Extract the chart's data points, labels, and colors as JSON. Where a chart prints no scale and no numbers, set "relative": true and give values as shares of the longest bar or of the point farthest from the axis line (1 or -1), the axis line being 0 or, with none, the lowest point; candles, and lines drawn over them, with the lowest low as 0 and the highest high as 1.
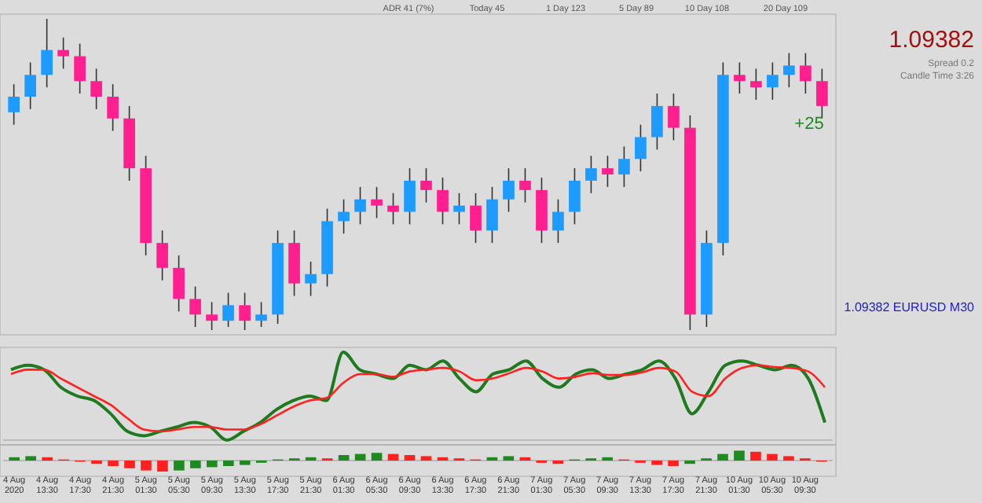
{
  "chart_data": [
    {
      "type": "candlestick",
      "relative": true,
      "tick_labels": false,
      "categories": [
        null,
        null,
        null,
        null,
        null,
        null,
        null,
        null,
        null,
        null,
        null,
        null,
        null,
        null,
        null,
        null,
        null,
        null,
        null,
        null,
        null,
        null,
        null,
        null,
        null,
        null,
        null,
        null,
        null,
        null,
        null,
        null,
        null,
        null,
        null,
        null,
        null,
        null,
        null,
        null,
        null,
        null,
        null,
        null,
        null,
        null,
        null,
        null,
        null,
        null
      ],
      "ohlc": [
        [
          0.7,
          0.79,
          0.66,
          0.75
        ],
        [
          0.75,
          0.86,
          0.71,
          0.82
        ],
        [
          0.82,
          1,
          0.78,
          0.9
        ],
        [
          0.9,
          0.94,
          0.84,
          0.88
        ],
        [
          0.88,
          0.92,
          0.76,
          0.8
        ],
        [
          0.8,
          0.84,
          0.71,
          0.75
        ],
        [
          0.75,
          0.79,
          0.64,
          0.68
        ],
        [
          0.68,
          0.72,
          0.48,
          0.52
        ],
        [
          0.52,
          0.56,
          0.24,
          0.28
        ],
        [
          0.28,
          0.32,
          0.16,
          0.2
        ],
        [
          0.2,
          0.24,
          0.06,
          0.1
        ],
        [
          0.1,
          0.14,
          0.01,
          0.05
        ],
        [
          0.05,
          0.09,
          0,
          0.03
        ],
        [
          0.03,
          0.12,
          0.01,
          0.08
        ],
        [
          0.08,
          0.12,
          0,
          0.03
        ],
        [
          0.03,
          0.09,
          0.01,
          0.05
        ],
        [
          0.05,
          0.32,
          0.02,
          0.28
        ],
        [
          0.28,
          0.32,
          0.11,
          0.15
        ],
        [
          0.15,
          0.22,
          0.11,
          0.18
        ],
        [
          0.18,
          0.39,
          0.14,
          0.35
        ],
        [
          0.35,
          0.42,
          0.31,
          0.38
        ],
        [
          0.38,
          0.46,
          0.34,
          0.42
        ],
        [
          0.42,
          0.46,
          0.36,
          0.4
        ],
        [
          0.4,
          0.44,
          0.34,
          0.38
        ],
        [
          0.38,
          0.52,
          0.34,
          0.48
        ],
        [
          0.48,
          0.52,
          0.41,
          0.45
        ],
        [
          0.45,
          0.49,
          0.34,
          0.38
        ],
        [
          0.38,
          0.44,
          0.34,
          0.4
        ],
        [
          0.4,
          0.44,
          0.28,
          0.32
        ],
        [
          0.32,
          0.46,
          0.28,
          0.42
        ],
        [
          0.42,
          0.52,
          0.38,
          0.48
        ],
        [
          0.48,
          0.52,
          0.41,
          0.45
        ],
        [
          0.45,
          0.49,
          0.28,
          0.32
        ],
        [
          0.32,
          0.42,
          0.28,
          0.38
        ],
        [
          0.38,
          0.52,
          0.34,
          0.48
        ],
        [
          0.48,
          0.56,
          0.44,
          0.52
        ],
        [
          0.52,
          0.56,
          0.46,
          0.5
        ],
        [
          0.5,
          0.59,
          0.46,
          0.55
        ],
        [
          0.55,
          0.66,
          0.51,
          0.62
        ],
        [
          0.62,
          0.76,
          0.58,
          0.72
        ],
        [
          0.72,
          0.76,
          0.61,
          0.65
        ],
        [
          0.65,
          0.69,
          0,
          0.05
        ],
        [
          0.05,
          0.32,
          0.01,
          0.28
        ],
        [
          0.28,
          0.86,
          0.24,
          0.82
        ],
        [
          0.82,
          0.86,
          0.76,
          0.8
        ],
        [
          0.8,
          0.84,
          0.74,
          0.78
        ],
        [
          0.78,
          0.86,
          0.74,
          0.82
        ],
        [
          0.82,
          0.89,
          0.78,
          0.85
        ],
        [
          0.85,
          0.89,
          0.76,
          0.8
        ],
        [
          0.8,
          0.84,
          0.68,
          0.72
        ]
      ],
      "colors": [
        "#1e9bff",
        "#1e9bff",
        "#1e9bff",
        "#ff1f8e",
        "#ff1f8e",
        "#ff1f8e",
        "#ff1f8e",
        "#ff1f8e",
        "#ff1f8e",
        "#ff1f8e",
        "#ff1f8e",
        "#ff1f8e",
        "#ff1f8e",
        "#1e9bff",
        "#ff1f8e",
        "#1e9bff",
        "#1e9bff",
        "#ff1f8e",
        "#1e9bff",
        "#1e9bff",
        "#1e9bff",
        "#1e9bff",
        "#ff1f8e",
        "#ff1f8e",
        "#1e9bff",
        "#ff1f8e",
        "#ff1f8e",
        "#1e9bff",
        "#ff1f8e",
        "#1e9bff",
        "#1e9bff",
        "#ff1f8e",
        "#ff1f8e",
        "#1e9bff",
        "#1e9bff",
        "#1e9bff",
        "#ff1f8e",
        "#1e9bff",
        "#1e9bff",
        "#1e9bff",
        "#ff1f8e",
        "#ff1f8e",
        "#1e9bff",
        "#1e9bff",
        "#ff1f8e",
        "#ff1f8e",
        "#1e9bff",
        "#1e9bff",
        "#ff1f8e",
        "#ff1f8e"
      ],
      "annotations": [
        "ADR 41 (7%)",
        "Today 45",
        "1 Day 123",
        "5 Day 89",
        "10 Day 108",
        "20 Day 109",
        "+25",
        "1.09382",
        "Spread 0.2",
        "Candle Time 3:26",
        "1.09382 EURUSD M30"
      ]
    },
    {
      "type": "line",
      "relative": true,
      "tick_labels": false,
      "categories": [
        null,
        null,
        null,
        null,
        null,
        null,
        null,
        null,
        null,
        null,
        null,
        null,
        null,
        null,
        null,
        null,
        null,
        null,
        null,
        null,
        null,
        null,
        null,
        null,
        null,
        null,
        null,
        null,
        null,
        null,
        null,
        null,
        null,
        null,
        null,
        null,
        null,
        null,
        null,
        null,
        null,
        null,
        null,
        null,
        null,
        null,
        null,
        null,
        null,
        null
      ],
      "series": [
        {
          "color": "#1f7a1f",
          "values": [
            0.8,
            0.85,
            0.8,
            0.6,
            0.5,
            0.45,
            0.3,
            0.1,
            0.05,
            0.1,
            0.15,
            0.2,
            0.15,
            0,
            0.1,
            0.2,
            0.35,
            0.45,
            0.5,
            0.45,
            1,
            0.8,
            0.75,
            0.7,
            0.85,
            0.8,
            0.9,
            0.7,
            0.55,
            0.75,
            0.8,
            0.9,
            0.7,
            0.6,
            0.75,
            0.8,
            0.7,
            0.75,
            0.8,
            0.9,
            0.7,
            0.3,
            0.55,
            0.85,
            0.9,
            0.85,
            0.8,
            0.85,
            0.7,
            0.2
          ]
        },
        {
          "color": "#ff2020",
          "values": [
            0.75,
            0.8,
            0.8,
            0.7,
            0.6,
            0.5,
            0.4,
            0.25,
            0.12,
            0.1,
            0.12,
            0.15,
            0.15,
            0.12,
            0.12,
            0.18,
            0.28,
            0.38,
            0.45,
            0.48,
            0.65,
            0.75,
            0.75,
            0.72,
            0.78,
            0.8,
            0.82,
            0.78,
            0.68,
            0.7,
            0.76,
            0.82,
            0.78,
            0.7,
            0.72,
            0.76,
            0.74,
            0.74,
            0.77,
            0.82,
            0.78,
            0.55,
            0.5,
            0.7,
            0.82,
            0.85,
            0.83,
            0.82,
            0.78,
            0.6
          ]
        }
      ]
    },
    {
      "type": "bar",
      "relative": true,
      "tick_labels": "x",
      "categories": [
        "4 Aug 2020",
        null,
        "4 Aug 13:30",
        null,
        "4 Aug 17:30",
        null,
        "4 Aug 21:30",
        null,
        "5 Aug 01:30",
        null,
        "5 Aug 05:30",
        null,
        "5 Aug 09:30",
        null,
        "5 Aug 13:30",
        null,
        "5 Aug 17:30",
        null,
        "5 Aug 21:30",
        null,
        "6 Aug 01:30",
        null,
        "6 Aug 05:30",
        null,
        "6 Aug 09:30",
        null,
        "6 Aug 13:30",
        null,
        "6 Aug 17:30",
        null,
        "6 Aug 21:30",
        null,
        "7 Aug 01:30",
        null,
        "7 Aug 05:30",
        null,
        "7 Aug 09:30",
        null,
        "7 Aug 13:30",
        null,
        "7 Aug 17:30",
        null,
        "7 Aug 21:30",
        null,
        "10 Aug 01:30",
        null,
        "10 Aug 05:30",
        null,
        "10 Aug 09:30",
        null
      ],
      "values": [
        0.3,
        0.4,
        0.3,
        0.1,
        -0.1,
        -0.3,
        -0.5,
        -0.7,
        -0.9,
        -1,
        -0.9,
        -0.7,
        -0.6,
        -0.5,
        -0.4,
        -0.2,
        0.1,
        0.2,
        0.3,
        0.2,
        0.5,
        0.6,
        0.7,
        0.6,
        0.5,
        0.4,
        0.3,
        0.2,
        0.1,
        0.3,
        0.4,
        0.3,
        -0.2,
        -0.3,
        0.1,
        0.2,
        0.3,
        0.1,
        -0.2,
        -0.4,
        -0.5,
        -0.3,
        0.2,
        0.6,
        0.9,
        0.8,
        0.6,
        0.4,
        0.2,
        -0.1
      ],
      "colors": [
        "#1f8a1f",
        "#1f8a1f",
        "#ff2020",
        "#ff2020",
        "#ff2020",
        "#ff2020",
        "#ff2020",
        "#ff2020",
        "#ff2020",
        "#ff2020",
        "#1f8a1f",
        "#1f8a1f",
        "#1f8a1f",
        "#1f8a1f",
        "#1f8a1f",
        "#1f8a1f",
        "#1f8a1f",
        "#1f8a1f",
        "#1f8a1f",
        "#ff2020",
        "#1f8a1f",
        "#1f8a1f",
        "#1f8a1f",
        "#ff2020",
        "#ff2020",
        "#ff2020",
        "#ff2020",
        "#ff2020",
        "#ff2020",
        "#1f8a1f",
        "#1f8a1f",
        "#ff2020",
        "#ff2020",
        "#ff2020",
        "#1f8a1f",
        "#1f8a1f",
        "#1f8a1f",
        "#ff2020",
        "#ff2020",
        "#ff2020",
        "#ff2020",
        "#1f8a1f",
        "#1f8a1f",
        "#1f8a1f",
        "#1f8a1f",
        "#ff2020",
        "#ff2020",
        "#ff2020",
        "#ff2020",
        "#ff2020"
      ]
    }
  ]
}
